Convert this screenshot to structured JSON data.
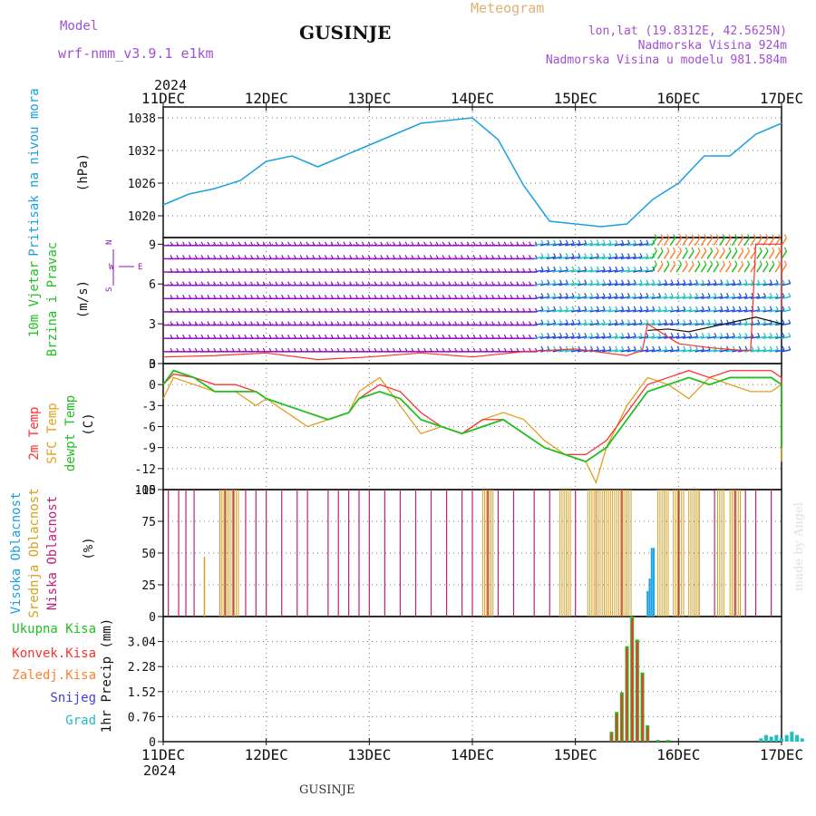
{
  "header": {
    "model_label": "Model",
    "model_name": "wrf-nmm_v3.9.1 e1km",
    "title": "GUSINJE",
    "meteogram_label": "Meteogram",
    "lonlat": "lon,lat (19.8312E, 42.5625N)",
    "elevation": "Nadmorska Visina 924m",
    "model_elevation": "Nadmorska Visina u modelu 981.584m",
    "year_top": "2024",
    "year_bottom": "2024",
    "footer_title": "GUSINJE",
    "credit": "made by Angel"
  },
  "colors": {
    "pressure": "#1ba1e2",
    "temp2m": "#ff3030",
    "sfc": "#e0a020",
    "dew": "#20c020",
    "high_cloud": "#1ba1e2",
    "mid_cloud": "#d4a020",
    "low_cloud": "#c0207a",
    "total_precip": "#20c020",
    "conv_precip": "#ff3030",
    "frozen_precip": "#ff8030",
    "snow": "#4040e0",
    "graupel": "#20c0c0",
    "wind_purple": "#9010c0",
    "wind_blue": "#2050e0",
    "wind_cyan": "#20c0c0",
    "wind_green": "#20c020"
  },
  "chart_data": [
    {
      "type": "line",
      "name": "pressure",
      "ylabel_main": "Pritisak na nivou mora",
      "ylabel_unit": "(hPa)",
      "x_ticks": [
        "11DEC",
        "12DEC",
        "13DEC",
        "14DEC",
        "15DEC",
        "16DEC",
        "17DEC"
      ],
      "ylim": [
        1016,
        1040
      ],
      "y_ticks": [
        "1020",
        "1026",
        "1032",
        "1038"
      ],
      "grid": true,
      "series": [
        {
          "key": "pressure",
          "x": [
            0,
            0.25,
            0.5,
            0.75,
            1.0,
            1.25,
            1.5,
            1.75,
            2.0,
            2.25,
            2.5,
            2.75,
            3.0,
            3.25,
            3.5,
            3.75,
            4.0,
            4.25,
            4.5,
            4.75,
            5.0,
            5.25,
            5.5,
            5.75,
            6.0
          ],
          "values": [
            1022,
            1024,
            1025,
            1026.5,
            1030,
            1031,
            1029,
            1031,
            1033,
            1035,
            1037,
            1037.5,
            1038,
            1034,
            1025.5,
            1019,
            1018.5,
            1018,
            1018.5,
            1023,
            1026,
            1031,
            1031,
            1035,
            1037
          ]
        }
      ]
    },
    {
      "type": "line",
      "name": "wind",
      "ylabel_main": "10m Vjetar",
      "ylabel_sub": "Brzina i Pravac",
      "ylabel_unit": "(m/s)",
      "compass": {
        "n": "N",
        "s": "S",
        "w": "W",
        "e": "E"
      },
      "ylim": [
        0,
        9.5
      ],
      "y_ticks": [
        "0",
        "3",
        "6",
        "9"
      ],
      "grid": true,
      "series": [
        {
          "key": "speed_red",
          "x": [
            0,
            0.5,
            1.0,
            1.5,
            2.0,
            2.5,
            3.0,
            3.5,
            4.0,
            4.5,
            4.65,
            4.7,
            5.0,
            5.3,
            5.6,
            5.7,
            5.75,
            6.0,
            6.3,
            6.6,
            6.8,
            7.0
          ],
          "values": [
            0.5,
            0.6,
            0.8,
            0.3,
            0.5,
            0.8,
            0.5,
            0.9,
            1.1,
            0.6,
            1.0,
            3.0,
            1.5,
            1.2,
            1.0,
            1.0,
            9.0,
            9.0,
            8.5,
            6.0,
            6.5,
            4.0
          ]
        },
        {
          "key": "speed_black",
          "x": [
            4.7,
            4.9,
            5.1,
            5.75,
            6.0,
            6.15,
            6.3,
            6.5,
            6.7,
            6.9,
            7.0
          ],
          "values": [
            2.5,
            2.6,
            2.4,
            3.5,
            3.0,
            4.0,
            3.2,
            2.8,
            2.4,
            3.2,
            3.4
          ]
        }
      ]
    },
    {
      "type": "line",
      "name": "temperature",
      "legend": [
        "2m Temp",
        "SFC Temp",
        "dewpt Temp"
      ],
      "ylabel_unit": "(C)",
      "ylim": [
        -15,
        3
      ],
      "y_ticks": [
        "3",
        "0",
        "-3",
        "-6",
        "-9",
        "-12",
        "-15"
      ],
      "grid": true,
      "series": [
        {
          "key": "temp2m",
          "x": [
            0,
            0.1,
            0.3,
            0.5,
            0.7,
            0.9,
            1.0,
            1.2,
            1.4,
            1.6,
            1.8,
            1.9,
            2.1,
            2.3,
            2.5,
            2.7,
            2.9,
            3.1,
            3.3,
            3.5,
            3.7,
            3.9,
            4.1,
            4.3,
            4.5,
            4.7,
            4.9,
            5.1,
            5.3,
            5.5,
            5.7,
            5.9,
            6.1,
            6.3,
            6.5,
            6.7,
            6.9,
            7.0
          ],
          "values": [
            0,
            1.5,
            1,
            0,
            0,
            -1,
            -2,
            -3,
            -4,
            -5,
            -4,
            -2,
            0,
            -1,
            -4,
            -6,
            -7,
            -5,
            -5,
            -7,
            -9,
            -10,
            -10,
            -8,
            -4,
            0,
            1,
            2,
            1,
            2,
            2,
            2,
            1,
            -3,
            -5,
            -6,
            -4,
            -4
          ]
        },
        {
          "key": "sfc",
          "x": [
            0,
            0.1,
            0.3,
            0.5,
            0.7,
            0.9,
            1.0,
            1.2,
            1.4,
            1.6,
            1.8,
            1.9,
            2.1,
            2.3,
            2.5,
            2.7,
            2.9,
            3.1,
            3.3,
            3.5,
            3.7,
            3.9,
            4.1,
            4.2,
            4.3,
            4.5,
            4.7,
            4.9,
            5.1,
            5.3,
            5.5,
            5.7,
            5.9,
            6.1,
            6.3,
            6.5,
            6.7,
            6.9,
            7.0
          ],
          "values": [
            -2,
            1,
            0,
            -1,
            -1,
            -3,
            -2,
            -4,
            -6,
            -5,
            -4,
            -1,
            1,
            -3,
            -7,
            -6,
            -7,
            -5,
            -4,
            -5,
            -8,
            -10,
            -11,
            -14,
            -9,
            -3,
            1,
            0,
            -2,
            1,
            0,
            -1,
            -1,
            0,
            -5,
            -8,
            -10,
            -11,
            -11
          ]
        },
        {
          "key": "dew",
          "x": [
            0,
            0.1,
            0.3,
            0.5,
            0.7,
            0.9,
            1.0,
            1.2,
            1.4,
            1.6,
            1.8,
            1.9,
            2.1,
            2.3,
            2.5,
            2.7,
            2.9,
            3.1,
            3.3,
            3.5,
            3.7,
            3.9,
            4.1,
            4.3,
            4.5,
            4.7,
            4.9,
            5.1,
            5.3,
            5.5,
            5.7,
            5.9,
            6.1,
            6.3,
            6.5,
            6.7,
            6.9,
            7.0
          ],
          "values": [
            0,
            2,
            1,
            -1,
            -1,
            -1,
            -2,
            -3,
            -4,
            -5,
            -4,
            -2,
            -1,
            -2,
            -5,
            -6,
            -7,
            -6,
            -5,
            -7,
            -9,
            -10,
            -11,
            -9,
            -5,
            -1,
            0,
            1,
            0,
            1,
            1,
            1,
            0,
            -5,
            -7,
            -9,
            -8,
            -8
          ]
        }
      ]
    },
    {
      "type": "bar",
      "name": "cloudiness",
      "legend": [
        "Visoka Oblacnost",
        "Srednja Oblacnost",
        "Niska Oblacnost"
      ],
      "ylabel_unit": "(%)",
      "ylim": [
        0,
        100
      ],
      "y_ticks": [
        "100",
        "75",
        "50",
        "25",
        "0"
      ],
      "grid": true
    },
    {
      "type": "bar",
      "name": "precipitation",
      "legend": [
        "Ukupna Kisa",
        "Konvek.Kisa",
        "Zaledj.Kisa",
        "Snijeg",
        "Grad"
      ],
      "ylabel_unit": "1hr Precip (mm)",
      "ylim": [
        0,
        3.8
      ],
      "y_ticks": [
        "0",
        "0.76",
        "1.52",
        "2.28",
        "3.04"
      ],
      "grid": true,
      "series": [
        {
          "key": "total_precip",
          "x": [
            4.35,
            4.4,
            4.45,
            4.5,
            4.55,
            4.6,
            4.65,
            4.7,
            4.8,
            4.9
          ],
          "values": [
            0.3,
            0.9,
            1.5,
            2.9,
            3.8,
            3.1,
            2.1,
            0.5,
            0.05,
            0.05
          ]
        },
        {
          "key": "graupel",
          "x": [
            5.8,
            5.85,
            5.9,
            5.95,
            6.0,
            6.05,
            6.1,
            6.15,
            6.2
          ],
          "values": [
            0.1,
            0.2,
            0.15,
            0.2,
            0.1,
            0.2,
            0.3,
            0.2,
            0.1
          ]
        }
      ]
    }
  ]
}
